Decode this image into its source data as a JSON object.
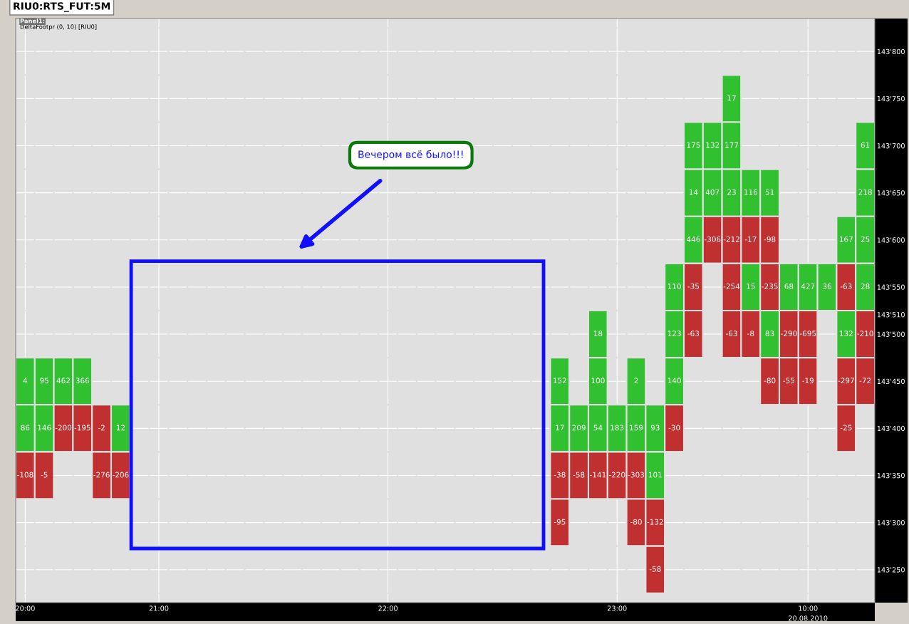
{
  "chart_data": {
    "type": "heatmap",
    "title": "RIU0:RTS_FUT:5M",
    "subtitle": "DeltaFootpr (0, 10) [RIU0]",
    "annotations": [
      "Panel1:",
      "Вечером всё было!!!",
      "20.08.2010",
      "143'510"
    ],
    "categories": [
      "20:00",
      null,
      null,
      null,
      null,
      null,
      null,
      "21:00",
      null,
      null,
      null,
      null,
      null,
      null,
      null,
      null,
      null,
      null,
      null,
      "22:00",
      null,
      null,
      null,
      null,
      null,
      null,
      null,
      null,
      null,
      null,
      null,
      "23:00",
      null,
      null,
      null,
      null,
      null,
      null,
      null,
      null,
      null,
      "10:00",
      null,
      null,
      null
    ],
    "y_categories": [
      "143'800",
      "143'750",
      "143'700",
      "143'650",
      "143'600",
      "143'550",
      "143'500",
      "143'450",
      "143'400",
      "143'350",
      "143'300",
      "143'250"
    ],
    "colors": [
      "#c03030",
      "#30c030"
    ],
    "grid": true,
    "data_labels": true,
    "cells": [
      [
        null,
        null,
        null,
        null,
        null,
        null,
        null,
        null,
        null,
        null,
        null,
        null,
        null,
        null,
        null,
        null,
        null,
        null,
        null,
        null,
        null,
        null,
        null,
        null,
        null,
        null,
        null,
        null,
        null,
        null,
        null,
        null,
        null,
        null,
        null,
        null,
        null,
        null,
        null,
        null,
        null,
        null,
        null,
        null,
        null
      ],
      [
        null,
        null,
        null,
        null,
        null,
        null,
        null,
        null,
        null,
        null,
        null,
        null,
        null,
        null,
        null,
        null,
        null,
        null,
        null,
        null,
        null,
        null,
        null,
        null,
        null,
        null,
        null,
        null,
        null,
        null,
        null,
        null,
        null,
        null,
        null,
        null,
        null,
        17,
        null,
        null,
        null,
        null,
        null,
        null,
        null
      ],
      [
        null,
        null,
        null,
        null,
        null,
        null,
        null,
        null,
        null,
        null,
        null,
        null,
        null,
        null,
        null,
        null,
        null,
        null,
        null,
        null,
        null,
        null,
        null,
        null,
        null,
        null,
        null,
        null,
        null,
        null,
        null,
        null,
        null,
        null,
        null,
        175,
        132,
        177,
        null,
        null,
        null,
        null,
        null,
        null,
        61
      ],
      [
        null,
        null,
        null,
        null,
        null,
        null,
        null,
        null,
        null,
        null,
        null,
        null,
        null,
        null,
        null,
        null,
        null,
        null,
        null,
        null,
        null,
        null,
        null,
        null,
        null,
        null,
        null,
        null,
        null,
        null,
        null,
        null,
        null,
        null,
        null,
        14,
        407,
        23,
        116,
        51,
        null,
        null,
        null,
        null,
        218
      ],
      [
        null,
        null,
        null,
        null,
        null,
        null,
        null,
        null,
        null,
        null,
        null,
        null,
        null,
        null,
        null,
        null,
        null,
        null,
        null,
        null,
        null,
        null,
        null,
        null,
        null,
        null,
        null,
        null,
        null,
        null,
        null,
        null,
        null,
        null,
        null,
        446,
        -306,
        -212,
        -17,
        -98,
        null,
        null,
        null,
        167,
        25
      ],
      [
        null,
        null,
        null,
        null,
        null,
        null,
        null,
        null,
        null,
        null,
        null,
        null,
        null,
        null,
        null,
        null,
        null,
        null,
        null,
        null,
        null,
        null,
        null,
        null,
        null,
        null,
        null,
        null,
        null,
        null,
        null,
        null,
        null,
        null,
        110,
        -35,
        null,
        -254,
        15,
        -235,
        68,
        427,
        36,
        -63,
        28
      ],
      [
        null,
        null,
        null,
        null,
        null,
        null,
        null,
        null,
        null,
        null,
        null,
        null,
        null,
        null,
        null,
        null,
        null,
        null,
        null,
        null,
        null,
        null,
        null,
        null,
        null,
        null,
        null,
        null,
        null,
        null,
        18,
        null,
        null,
        null,
        123,
        -63,
        null,
        -63,
        -8,
        83,
        -290,
        -695,
        null,
        132,
        -210
      ],
      [
        4,
        95,
        462,
        366,
        null,
        null,
        null,
        null,
        null,
        null,
        null,
        null,
        null,
        null,
        null,
        null,
        null,
        null,
        null,
        null,
        null,
        null,
        null,
        null,
        null,
        null,
        null,
        null,
        152,
        null,
        100,
        null,
        2,
        null,
        140,
        null,
        null,
        null,
        null,
        -80,
        -55,
        -19,
        null,
        -297,
        -72
      ],
      [
        86,
        146,
        -200,
        -195,
        -2,
        12,
        null,
        null,
        null,
        null,
        null,
        null,
        null,
        null,
        null,
        null,
        null,
        null,
        null,
        null,
        null,
        null,
        null,
        null,
        null,
        null,
        null,
        null,
        17,
        209,
        54,
        183,
        159,
        93,
        -30,
        null,
        null,
        null,
        null,
        null,
        null,
        null,
        null,
        -25,
        null
      ],
      [
        -108,
        -5,
        null,
        null,
        -276,
        -206,
        null,
        null,
        null,
        null,
        null,
        null,
        null,
        null,
        null,
        null,
        null,
        null,
        null,
        null,
        null,
        null,
        null,
        null,
        null,
        null,
        null,
        null,
        -38,
        -58,
        -141,
        -220,
        -303,
        101,
        null,
        null,
        null,
        null,
        null,
        null,
        null,
        null,
        null,
        null,
        null
      ],
      [
        null,
        null,
        null,
        null,
        null,
        null,
        null,
        null,
        null,
        null,
        null,
        null,
        null,
        null,
        null,
        null,
        null,
        null,
        null,
        null,
        null,
        null,
        null,
        null,
        null,
        null,
        null,
        null,
        -95,
        null,
        null,
        null,
        -80,
        -132,
        null,
        null,
        null,
        null,
        null,
        null,
        null,
        null,
        null,
        null,
        null
      ],
      [
        null,
        null,
        null,
        null,
        null,
        null,
        null,
        null,
        null,
        null,
        null,
        null,
        null,
        null,
        null,
        null,
        null,
        null,
        null,
        null,
        null,
        null,
        null,
        null,
        null,
        null,
        null,
        null,
        null,
        null,
        null,
        null,
        null,
        -58,
        null,
        null,
        null,
        null,
        null,
        null,
        null,
        null,
        null,
        null,
        null
      ]
    ]
  }
}
